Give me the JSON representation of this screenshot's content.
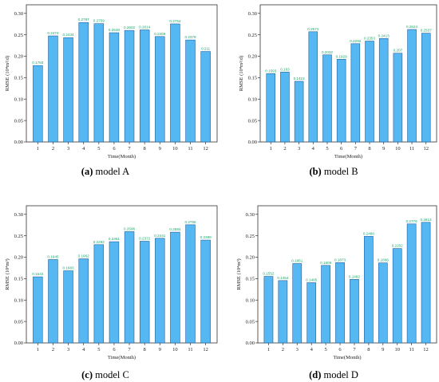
{
  "colors": {
    "bar_fill": "#56b8f3",
    "bar_stroke": "#1f5f9e",
    "data_label": "#1aa86a"
  },
  "chart_data": [
    {
      "type": "bar",
      "caption_letter": "(a)",
      "caption_text": " model A",
      "xlabel": "Time(Month)",
      "ylabel": "RMSE (10⁴m³/d)",
      "ylim": [
        0,
        0.32
      ],
      "yticks": [
        "0.00",
        "0.05",
        "0.10",
        "0.15",
        "0.20",
        "0.25",
        "0.30"
      ],
      "categories": [
        "1",
        "2",
        "3",
        "4",
        "5",
        "6",
        "7",
        "8",
        "9",
        "10",
        "11",
        "12"
      ],
      "values": [
        0.1783,
        0.2474,
        0.2434,
        0.2787,
        0.2759,
        0.2548,
        0.2602,
        0.2614,
        0.2459,
        0.2754,
        0.2379,
        0.211
      ],
      "value_labels": [
        "0.1783",
        "0.2474",
        "0.2434",
        "0.2787",
        "0.2759",
        "0.2548",
        "0.2602",
        "0.2614",
        "0.2459",
        "0.2754",
        "0.2379",
        "0.211"
      ]
    },
    {
      "type": "bar",
      "caption_letter": "(b)",
      "caption_text": " model B",
      "xlabel": "Time(Month)",
      "ylabel": "RMSE (10⁴m³/d)",
      "ylim": [
        0,
        0.32
      ],
      "yticks": [
        "0.00",
        "0.05",
        "0.10",
        "0.15",
        "0.20",
        "0.25",
        "0.30"
      ],
      "categories": [
        "1",
        "2",
        "3",
        "4",
        "5",
        "6",
        "7",
        "8",
        "9",
        "10",
        "11",
        "12"
      ],
      "values": [
        0.1593,
        0.163,
        0.1415,
        0.2571,
        0.2032,
        0.1929,
        0.2292,
        0.2353,
        0.2413,
        0.207,
        0.2624,
        0.2537
      ],
      "value_labels": [
        "0.1593",
        "0.163",
        "0.1415",
        "0.2571",
        "0.2032",
        "0.1929",
        "0.2292",
        "0.2353",
        "0.2413",
        "0.207",
        "0.2624",
        "0.2537"
      ]
    },
    {
      "type": "bar",
      "caption_letter": "(c)",
      "caption_text": " model C",
      "xlabel": "Time(Month)",
      "ylabel": "RMSE (10⁴m³)",
      "ylim": [
        0,
        0.32
      ],
      "yticks": [
        "0.00",
        "0.05",
        "0.10",
        "0.15",
        "0.20",
        "0.25",
        "0.30"
      ],
      "categories": [
        "1",
        "2",
        "3",
        "4",
        "5",
        "6",
        "7",
        "8",
        "9",
        "10",
        "11",
        "12"
      ],
      "values": [
        0.1542,
        0.1945,
        0.1683,
        0.1962,
        0.2292,
        0.2361,
        0.2596,
        0.2372,
        0.2441,
        0.2584,
        0.2756,
        0.2399
      ],
      "value_labels": [
        "0.1542",
        "0.1945",
        "0.1683",
        "0.1962",
        "0.2292",
        "0.2361",
        "0.2596",
        "0.2372",
        "0.2441",
        "0.2584",
        "0.2756",
        "0.2399"
      ]
    },
    {
      "type": "bar",
      "caption_letter": "(d)",
      "caption_text": " model D",
      "xlabel": "Time(Month)",
      "ylabel": "RMSE (10⁴m³)",
      "ylim": [
        0,
        0.32
      ],
      "yticks": [
        "0.00",
        "0.05",
        "0.10",
        "0.15",
        "0.20",
        "0.25",
        "0.30"
      ],
      "categories": [
        "1",
        "2",
        "3",
        "4",
        "5",
        "6",
        "7",
        "8",
        "9",
        "10",
        "11",
        "12"
      ],
      "values": [
        0.1552,
        0.1454,
        0.1851,
        0.1405,
        0.1808,
        0.1873,
        0.1482,
        0.2486,
        0.1866,
        0.2202,
        0.2776,
        0.2813
      ],
      "value_labels": [
        "0.1552",
        "0.1454",
        "0.1851",
        "0.1405",
        "0.1808",
        "0.1873",
        "0.1482",
        "0.2486",
        "0.1866",
        "0.2202",
        "0.2776",
        "0.2813"
      ]
    }
  ]
}
